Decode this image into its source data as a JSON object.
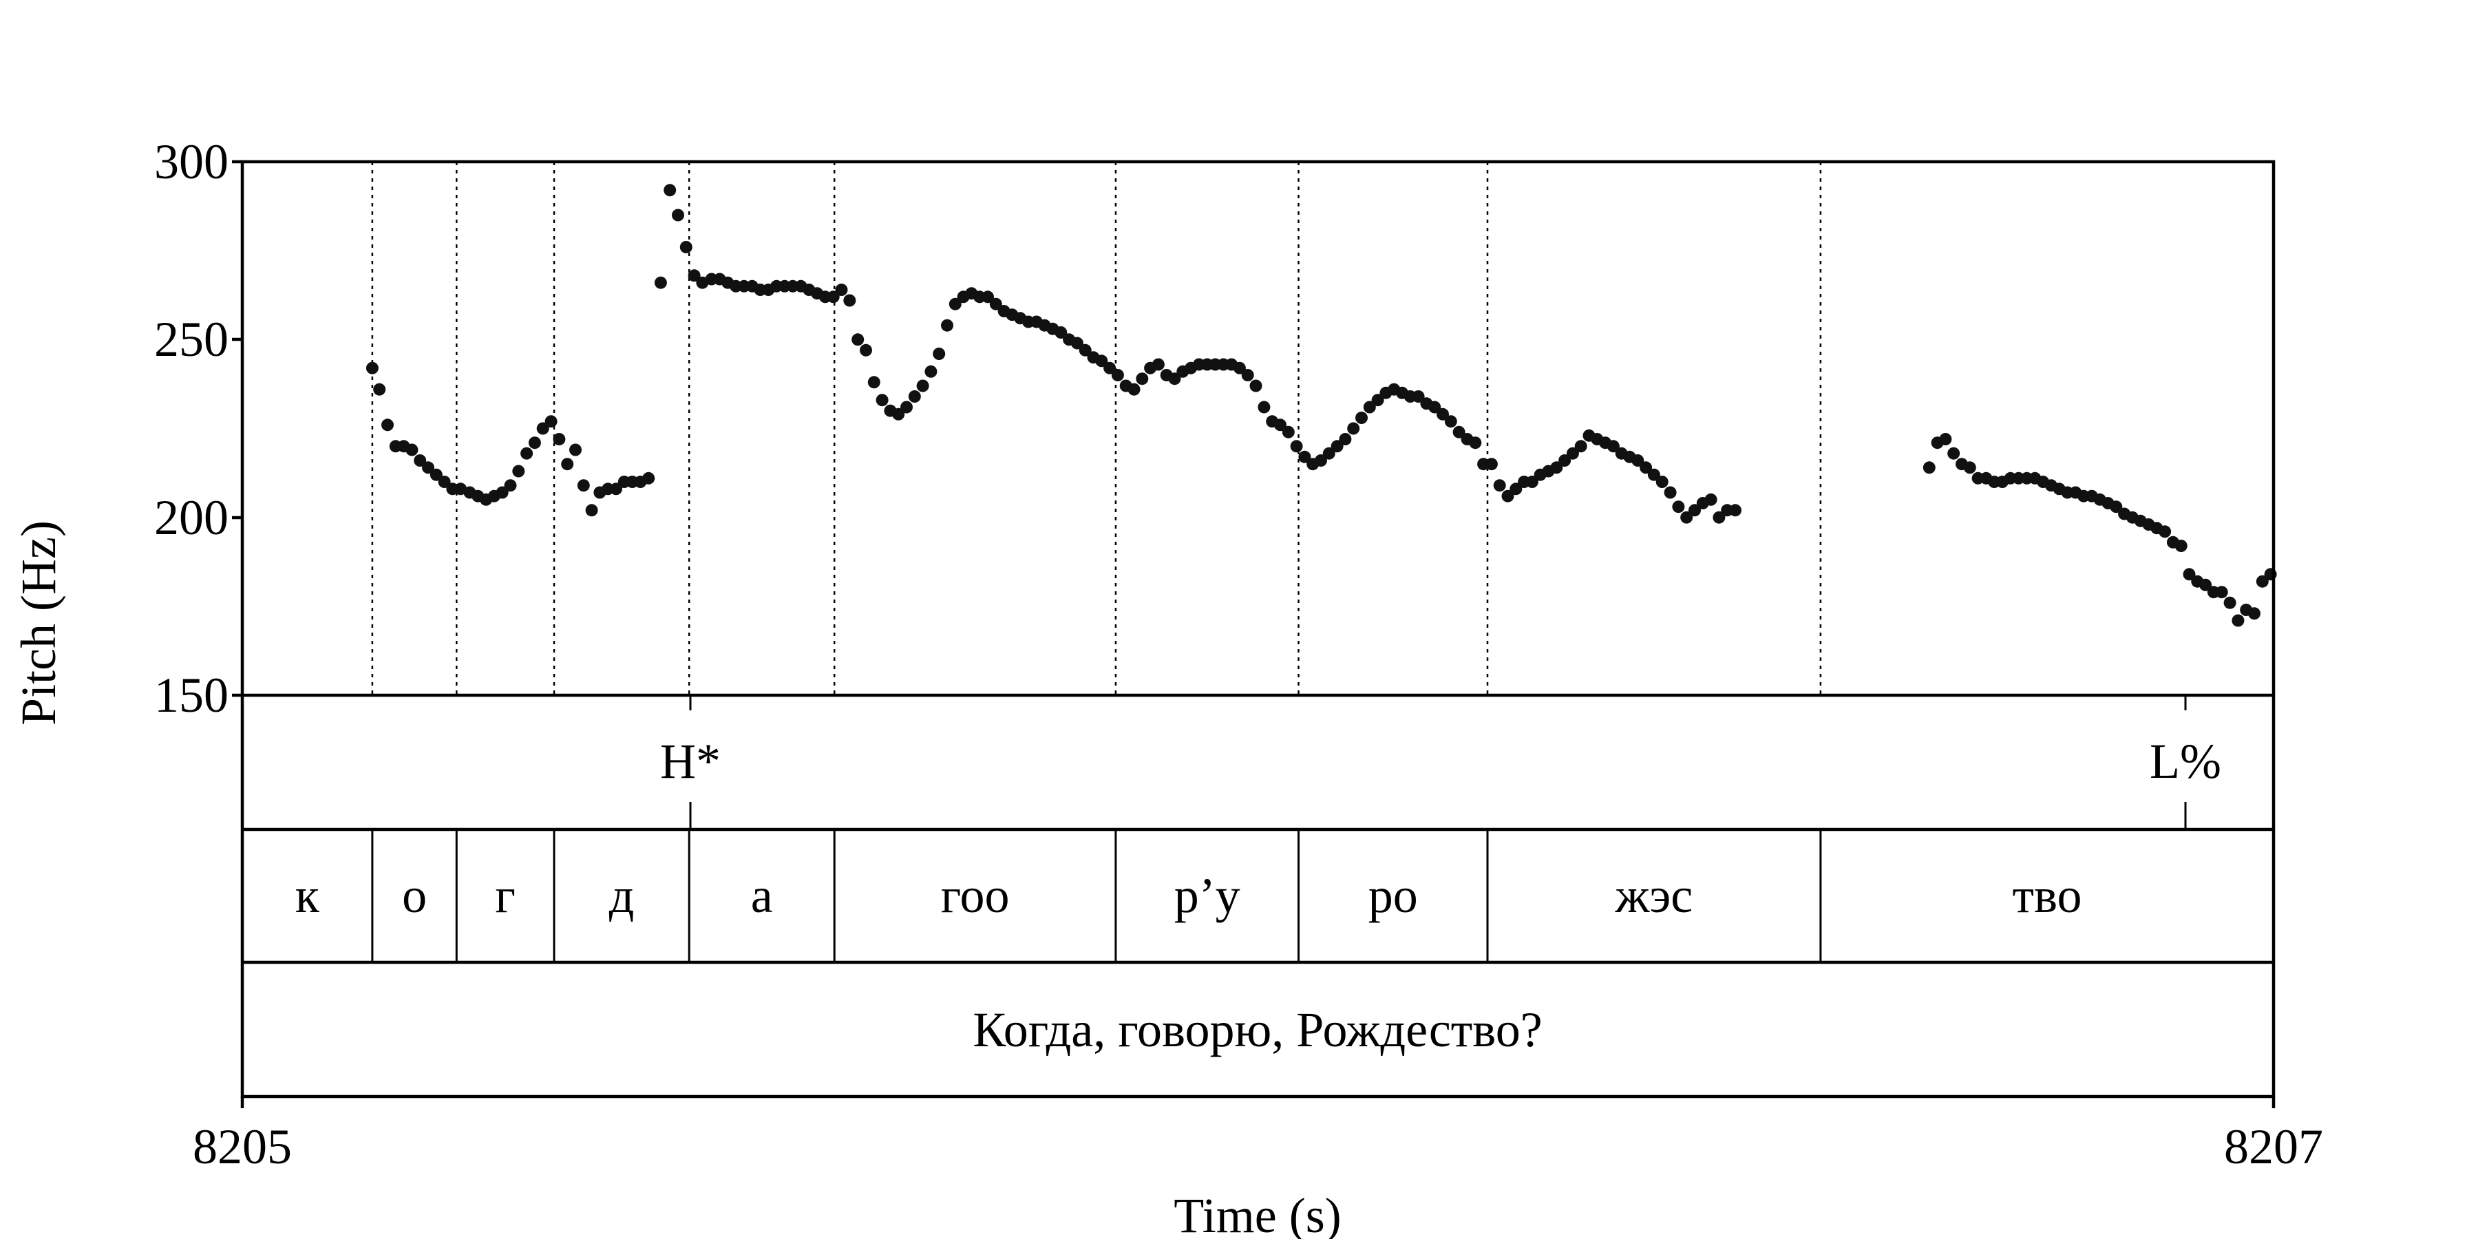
{
  "chart_data": {
    "type": "scatter",
    "title": "",
    "xlabel": "Time (s)",
    "ylabel": "Pitch (Hz)",
    "xlim": [
      8205,
      8207
    ],
    "ylim": [
      150,
      300
    ],
    "x_ticks": [
      "8205",
      "8207"
    ],
    "y_ticks": [
      "150",
      "200",
      "250",
      "300"
    ],
    "grid": false,
    "series": [
      {
        "points": [
          [
            8205.128,
            242
          ],
          [
            8205.135,
            236
          ],
          [
            8205.143,
            226
          ],
          [
            8205.151,
            220
          ],
          [
            8205.159,
            220
          ],
          [
            8205.167,
            219
          ],
          [
            8205.175,
            216
          ],
          [
            8205.183,
            214
          ],
          [
            8205.191,
            212
          ],
          [
            8205.199,
            210
          ],
          [
            8205.207,
            208
          ],
          [
            8205.215,
            208
          ],
          [
            8205.224,
            207
          ],
          [
            8205.232,
            206
          ],
          [
            8205.24,
            205
          ],
          [
            8205.248,
            206
          ],
          [
            8205.256,
            207
          ],
          [
            8205.264,
            209
          ],
          [
            8205.272,
            213
          ],
          [
            8205.28,
            218
          ],
          [
            8205.288,
            221
          ],
          [
            8205.296,
            225
          ],
          [
            8205.304,
            227
          ],
          [
            8205.312,
            222
          ],
          [
            8205.32,
            215
          ],
          [
            8205.328,
            219
          ],
          [
            8205.336,
            209
          ],
          [
            8205.344,
            202
          ],
          [
            8205.352,
            207
          ],
          [
            8205.36,
            208
          ],
          [
            8205.368,
            208
          ],
          [
            8205.376,
            210
          ],
          [
            8205.384,
            210
          ],
          [
            8205.392,
            210
          ],
          [
            8205.4,
            211
          ],
          [
            8205.412,
            266
          ],
          [
            8205.421,
            292
          ],
          [
            8205.429,
            285
          ],
          [
            8205.437,
            276
          ],
          [
            8205.445,
            268
          ],
          [
            8205.453,
            266
          ],
          [
            8205.462,
            267
          ],
          [
            8205.47,
            267
          ],
          [
            8205.478,
            266
          ],
          [
            8205.486,
            265
          ],
          [
            8205.494,
            265
          ],
          [
            8205.502,
            265
          ],
          [
            8205.51,
            264
          ],
          [
            8205.518,
            264
          ],
          [
            8205.526,
            265
          ],
          [
            8205.534,
            265
          ],
          [
            8205.542,
            265
          ],
          [
            8205.55,
            265
          ],
          [
            8205.558,
            264
          ],
          [
            8205.566,
            263
          ],
          [
            8205.574,
            262
          ],
          [
            8205.582,
            262
          ],
          [
            8205.59,
            264
          ],
          [
            8205.598,
            261
          ],
          [
            8205.606,
            250
          ],
          [
            8205.614,
            247
          ],
          [
            8205.622,
            238
          ],
          [
            8205.63,
            233
          ],
          [
            8205.638,
            230
          ],
          [
            8205.646,
            229
          ],
          [
            8205.654,
            231
          ],
          [
            8205.662,
            234
          ],
          [
            8205.67,
            237
          ],
          [
            8205.678,
            241
          ],
          [
            8205.686,
            246
          ],
          [
            8205.694,
            254
          ],
          [
            8205.702,
            260
          ],
          [
            8205.71,
            262
          ],
          [
            8205.718,
            263
          ],
          [
            8205.726,
            262
          ],
          [
            8205.734,
            262
          ],
          [
            8205.742,
            260
          ],
          [
            8205.75,
            258
          ],
          [
            8205.758,
            257
          ],
          [
            8205.766,
            256
          ],
          [
            8205.774,
            255
          ],
          [
            8205.782,
            255
          ],
          [
            8205.79,
            254
          ],
          [
            8205.798,
            253
          ],
          [
            8205.806,
            252
          ],
          [
            8205.814,
            250
          ],
          [
            8205.822,
            249
          ],
          [
            8205.83,
            247
          ],
          [
            8205.838,
            245
          ],
          [
            8205.846,
            244
          ],
          [
            8205.854,
            242
          ],
          [
            8205.862,
            240
          ],
          [
            8205.87,
            237
          ],
          [
            8205.878,
            236
          ],
          [
            8205.886,
            239
          ],
          [
            8205.894,
            242
          ],
          [
            8205.902,
            243
          ],
          [
            8205.91,
            240
          ],
          [
            8205.918,
            239
          ],
          [
            8205.926,
            241
          ],
          [
            8205.934,
            242
          ],
          [
            8205.942,
            243
          ],
          [
            8205.95,
            243
          ],
          [
            8205.958,
            243
          ],
          [
            8205.966,
            243
          ],
          [
            8205.974,
            243
          ],
          [
            8205.982,
            242
          ],
          [
            8205.99,
            240
          ],
          [
            8205.998,
            237
          ],
          [
            8206.006,
            231
          ],
          [
            8206.014,
            227
          ],
          [
            8206.022,
            226
          ],
          [
            8206.03,
            224
          ],
          [
            8206.038,
            220
          ],
          [
            8206.046,
            217
          ],
          [
            8206.054,
            215
          ],
          [
            8206.062,
            216
          ],
          [
            8206.07,
            218
          ],
          [
            8206.078,
            220
          ],
          [
            8206.086,
            222
          ],
          [
            8206.094,
            225
          ],
          [
            8206.102,
            228
          ],
          [
            8206.11,
            231
          ],
          [
            8206.118,
            233
          ],
          [
            8206.126,
            235
          ],
          [
            8206.134,
            236
          ],
          [
            8206.142,
            235
          ],
          [
            8206.15,
            234
          ],
          [
            8206.158,
            234
          ],
          [
            8206.166,
            232
          ],
          [
            8206.174,
            231
          ],
          [
            8206.182,
            229
          ],
          [
            8206.19,
            227
          ],
          [
            8206.198,
            224
          ],
          [
            8206.206,
            222
          ],
          [
            8206.214,
            221
          ],
          [
            8206.222,
            215
          ],
          [
            8206.23,
            215
          ],
          [
            8206.238,
            209
          ],
          [
            8206.246,
            206
          ],
          [
            8206.254,
            208
          ],
          [
            8206.262,
            210
          ],
          [
            8206.27,
            210
          ],
          [
            8206.278,
            212
          ],
          [
            8206.286,
            213
          ],
          [
            8206.294,
            214
          ],
          [
            8206.302,
            216
          ],
          [
            8206.31,
            218
          ],
          [
            8206.318,
            220
          ],
          [
            8206.326,
            223
          ],
          [
            8206.334,
            222
          ],
          [
            8206.342,
            221
          ],
          [
            8206.35,
            220
          ],
          [
            8206.358,
            218
          ],
          [
            8206.366,
            217
          ],
          [
            8206.374,
            216
          ],
          [
            8206.382,
            214
          ],
          [
            8206.39,
            212
          ],
          [
            8206.398,
            210
          ],
          [
            8206.406,
            207
          ],
          [
            8206.414,
            203
          ],
          [
            8206.422,
            200
          ],
          [
            8206.43,
            202
          ],
          [
            8206.438,
            204
          ],
          [
            8206.446,
            205
          ],
          [
            8206.454,
            200
          ],
          [
            8206.462,
            202
          ],
          [
            8206.47,
            202
          ],
          [
            8206.661,
            214
          ],
          [
            8206.669,
            221
          ],
          [
            8206.677,
            222
          ],
          [
            8206.685,
            218
          ],
          [
            8206.693,
            215
          ],
          [
            8206.701,
            214
          ],
          [
            8206.709,
            211
          ],
          [
            8206.717,
            211
          ],
          [
            8206.725,
            210
          ],
          [
            8206.733,
            210
          ],
          [
            8206.741,
            211
          ],
          [
            8206.749,
            211
          ],
          [
            8206.757,
            211
          ],
          [
            8206.765,
            211
          ],
          [
            8206.773,
            210
          ],
          [
            8206.781,
            209
          ],
          [
            8206.789,
            208
          ],
          [
            8206.797,
            207
          ],
          [
            8206.805,
            207
          ],
          [
            8206.813,
            206
          ],
          [
            8206.821,
            206
          ],
          [
            8206.829,
            205
          ],
          [
            8206.837,
            204
          ],
          [
            8206.845,
            203
          ],
          [
            8206.853,
            201
          ],
          [
            8206.861,
            200
          ],
          [
            8206.869,
            199
          ],
          [
            8206.877,
            198
          ],
          [
            8206.885,
            197
          ],
          [
            8206.893,
            196
          ],
          [
            8206.901,
            193
          ],
          [
            8206.909,
            192
          ],
          [
            8206.917,
            184
          ],
          [
            8206.925,
            182
          ],
          [
            8206.933,
            181
          ],
          [
            8206.941,
            179
          ],
          [
            8206.949,
            179
          ],
          [
            8206.957,
            176
          ],
          [
            8206.965,
            171
          ],
          [
            8206.973,
            174
          ],
          [
            8206.981,
            173
          ],
          [
            8206.989,
            182
          ],
          [
            8206.997,
            184
          ]
        ]
      }
    ],
    "tiers": {
      "tones": {
        "labels": [
          {
            "time": 8205.44,
            "label": "H*"
          },
          {
            "time": 8206.918,
            "label": "L%"
          }
        ]
      },
      "syllables": {
        "boundaries": [
          8205.128,
          8205.211,
          8205.307,
          8205.44,
          8205.583,
          8205.86,
          8206.04,
          8206.226,
          8206.554
        ],
        "labels": [
          "к",
          "о",
          "г",
          "д",
          "а",
          "гоо",
          "р’у",
          "ро",
          "жэс",
          "тво"
        ]
      },
      "phrase": {
        "label": "Когда, говорю, Рождество?"
      }
    }
  }
}
